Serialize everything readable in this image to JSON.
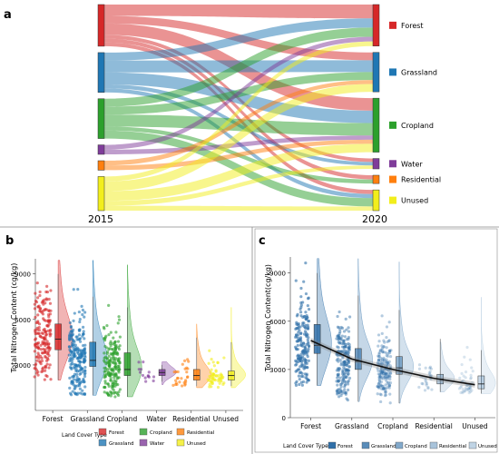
{
  "panels": {
    "a": {
      "letter": "a"
    },
    "b": {
      "letter": "b"
    },
    "c": {
      "letter": "c"
    }
  },
  "colors": {
    "Forest": "#d62728",
    "Grassland": "#1f77b4",
    "Cropland": "#2ca02c",
    "Water": "#7f3c9a",
    "Residential": "#ff7f0e",
    "Unused": "#f2ee1c",
    "panel_c_base": "#2f6fa8"
  },
  "chart_data": [
    {
      "panel": "a",
      "type": "sankey",
      "left_label": "2015",
      "right_label": "2020",
      "nodes": [
        "Forest",
        "Grassland",
        "Cropland",
        "Water",
        "Residential",
        "Unused"
      ],
      "shares_2015": [
        0.22,
        0.21,
        0.21,
        0.05,
        0.05,
        0.18
      ],
      "shares_2020": [
        0.2,
        0.19,
        0.26,
        0.05,
        0.04,
        0.1
      ],
      "links": [
        {
          "from": "Forest",
          "to": "Forest",
          "value": 3
        },
        {
          "from": "Forest",
          "to": "Grassland",
          "value": 2
        },
        {
          "from": "Forest",
          "to": "Cropland",
          "value": 3
        },
        {
          "from": "Forest",
          "to": "Water",
          "value": 1
        },
        {
          "from": "Forest",
          "to": "Residential",
          "value": 1
        },
        {
          "from": "Forest",
          "to": "Unused",
          "value": 1
        },
        {
          "from": "Grassland",
          "to": "Forest",
          "value": 2
        },
        {
          "from": "Grassland",
          "to": "Grassland",
          "value": 3
        },
        {
          "from": "Grassland",
          "to": "Cropland",
          "value": 3
        },
        {
          "from": "Grassland",
          "to": "Water",
          "value": 1
        },
        {
          "from": "Grassland",
          "to": "Unused",
          "value": 1
        },
        {
          "from": "Cropland",
          "to": "Forest",
          "value": 2
        },
        {
          "from": "Cropland",
          "to": "Grassland",
          "value": 2
        },
        {
          "from": "Cropland",
          "to": "Cropland",
          "value": 3
        },
        {
          "from": "Cropland",
          "to": "Residential",
          "value": 1
        },
        {
          "from": "Cropland",
          "to": "Unused",
          "value": 2
        },
        {
          "from": "Water",
          "to": "Forest",
          "value": 1
        },
        {
          "from": "Water",
          "to": "Cropland",
          "value": 1
        },
        {
          "from": "Residential",
          "to": "Grassland",
          "value": 1
        },
        {
          "from": "Residential",
          "to": "Cropland",
          "value": 1
        },
        {
          "from": "Unused",
          "to": "Forest",
          "value": 1
        },
        {
          "from": "Unused",
          "to": "Grassland",
          "value": 2
        },
        {
          "from": "Unused",
          "to": "Cropland",
          "value": 2
        },
        {
          "from": "Unused",
          "to": "Water",
          "value": 1
        },
        {
          "from": "Unused",
          "to": "Unused",
          "value": 1
        }
      ],
      "legend": [
        "Forest",
        "Grassland",
        "Cropland",
        "Water",
        "Residential",
        "Unused"
      ]
    },
    {
      "panel": "b",
      "type": "raincloud",
      "categories": [
        "Forest",
        "Grassland",
        "Cropland",
        "Water",
        "Residential",
        "Unused"
      ],
      "xlabel": "Land Cover Type",
      "ylabel": "Total Nitrogen Content (cg/kg)",
      "ylim": [
        0,
        10000
      ],
      "yticks": [
        3000,
        6000,
        9000
      ],
      "median": [
        4700,
        3300,
        2700,
        2500,
        2300,
        2300
      ],
      "q1": [
        4000,
        2900,
        2300,
        2300,
        2000,
        2000
      ],
      "q3": [
        5700,
        4500,
        3800,
        2700,
        2700,
        2600
      ],
      "whisker_low": [
        2000,
        1000,
        900,
        1900,
        1600,
        1600
      ],
      "whisker_high": [
        9000,
        7500,
        6800,
        3000,
        4800,
        4500
      ],
      "point_min": [
        2000,
        1000,
        900,
        1700,
        1500,
        1500
      ],
      "point_max": [
        9900,
        9900,
        9600,
        3200,
        5700,
        6800
      ],
      "points_count": [
        180,
        220,
        190,
        14,
        28,
        55
      ],
      "legend_title": "Land Cover Type",
      "legend": [
        "Forest",
        "Cropland",
        "Residential",
        "Grassland",
        "Water",
        "Unused"
      ]
    },
    {
      "panel": "c",
      "type": "raincloud",
      "categories": [
        "Forest",
        "Grassland",
        "Cropland",
        "Residential",
        "Unused"
      ],
      "xlabel": "Land Cover Type",
      "ylabel": "Total Nitrogen Content(cg/kg)",
      "ylim": [
        0,
        10000
      ],
      "yticks": [
        0,
        3000,
        6000,
        9000
      ],
      "median": [
        4500,
        3500,
        3100,
        2400,
        2100
      ],
      "q1": [
        4000,
        3000,
        2700,
        2100,
        1800
      ],
      "q3": [
        5800,
        4300,
        3800,
        2700,
        2600
      ],
      "whisker_low": [
        2000,
        1000,
        900,
        1600,
        1500
      ],
      "whisker_high": [
        9000,
        7600,
        6700,
        4900,
        4200
      ],
      "point_min": [
        2000,
        1000,
        900,
        1600,
        1500
      ],
      "point_max": [
        9900,
        9900,
        9700,
        4700,
        7500
      ],
      "points_count": [
        180,
        210,
        180,
        28,
        50
      ],
      "trend_line": [
        4800,
        3650,
        3000,
        2450,
        2050
      ],
      "legend_title": "Land Cover Type",
      "legend": [
        "Forest",
        "Grassland",
        "Cropland",
        "Residential",
        "Unused"
      ]
    }
  ]
}
